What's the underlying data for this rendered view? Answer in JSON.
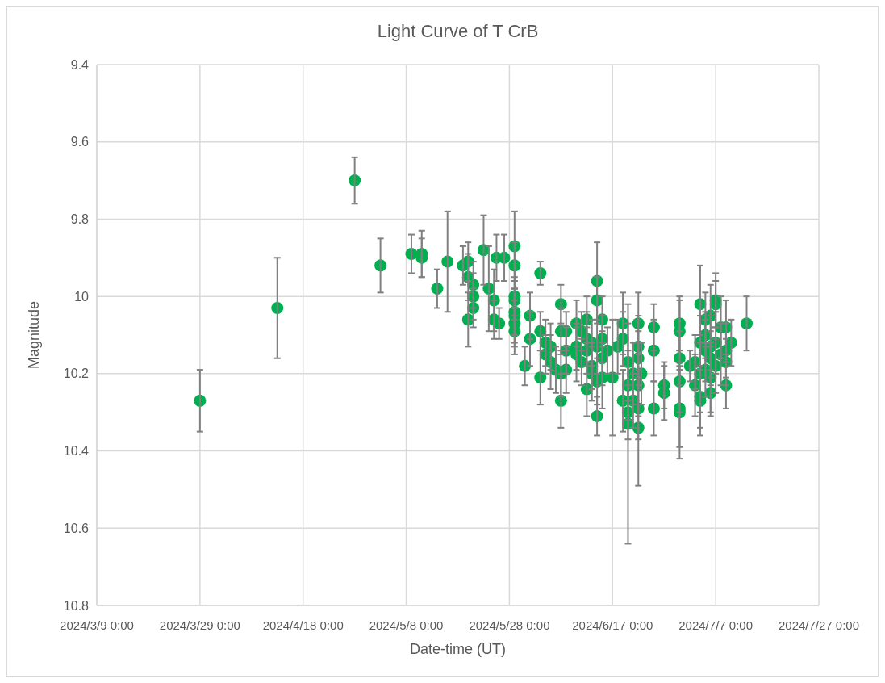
{
  "chart_data": {
    "type": "scatter",
    "title": "Light Curve of T CrB",
    "xlabel": "Date-time (UT)",
    "ylabel": "Magnitude",
    "xlim": [
      "2024-03-09",
      "2024-07-27"
    ],
    "xticks": [
      {
        "value": "2024-03-09",
        "label": "2024/3/9 0:00"
      },
      {
        "value": "2024-03-29",
        "label": "2024/3/29 0:00"
      },
      {
        "value": "2024-04-18",
        "label": "2024/4/18 0:00"
      },
      {
        "value": "2024-05-08",
        "label": "2024/5/8 0:00"
      },
      {
        "value": "2024-05-28",
        "label": "2024/5/28 0:00"
      },
      {
        "value": "2024-06-17",
        "label": "2024/6/17 0:00"
      },
      {
        "value": "2024-07-07",
        "label": "2024/7/7 0:00"
      },
      {
        "value": "2024-07-27",
        "label": "2024/7/27 0:00"
      }
    ],
    "ylim": [
      10.8,
      9.4
    ],
    "yticks": [
      9.4,
      9.6,
      9.8,
      10,
      10.2,
      10.4,
      10.6,
      10.8
    ],
    "grid": true,
    "marker": "circle",
    "series": [
      {
        "color": "#00b050",
        "x": [
          "2024-03-29",
          "2024-04-13",
          "2024-04-28",
          "2024-05-03",
          "2024-05-09",
          "2024-05-11",
          "2024-05-11",
          "2024-05-14",
          "2024-05-16",
          "2024-05-19",
          "2024-05-20",
          "2024-05-20",
          "2024-05-20",
          "2024-05-21",
          "2024-05-21",
          "2024-05-21",
          "2024-05-23",
          "2024-05-24",
          "2024-05-25T12:00",
          "2024-05-25",
          "2024-05-25",
          "2024-05-26",
          "2024-05-27",
          "2024-05-29",
          "2024-05-29",
          "2024-05-29",
          "2024-05-29",
          "2024-05-29",
          "2024-05-29",
          "2024-05-29",
          "2024-05-29",
          "2024-05-31",
          "2024-06-01",
          "2024-06-01",
          "2024-06-03",
          "2024-06-03",
          "2024-06-03",
          "2024-06-04",
          "2024-06-04",
          "2024-06-05",
          "2024-06-05",
          "2024-06-06",
          "2024-06-07",
          "2024-06-07",
          "2024-06-07",
          "2024-06-07",
          "2024-06-08",
          "2024-06-08",
          "2024-06-08",
          "2024-06-10",
          "2024-06-10",
          "2024-06-10",
          "2024-06-11",
          "2024-06-11",
          "2024-06-12",
          "2024-06-12",
          "2024-06-12",
          "2024-06-12",
          "2024-06-13",
          "2024-06-13",
          "2024-06-13",
          "2024-06-14",
          "2024-06-14",
          "2024-06-14",
          "2024-06-14",
          "2024-06-14",
          "2024-06-15",
          "2024-06-15",
          "2024-06-15",
          "2024-06-15",
          "2024-06-16",
          "2024-06-17",
          "2024-06-18",
          "2024-06-19",
          "2024-06-19",
          "2024-06-19",
          "2024-06-20",
          "2024-06-20",
          "2024-06-20",
          "2024-06-20",
          "2024-06-21",
          "2024-06-21",
          "2024-06-22",
          "2024-06-22",
          "2024-06-22",
          "2024-06-22T14:00",
          "2024-06-22",
          "2024-06-22",
          "2024-06-22",
          "2024-06-25",
          "2024-06-25",
          "2024-06-25",
          "2024-06-27",
          "2024-06-27",
          "2024-06-30",
          "2024-06-30",
          "2024-06-30",
          "2024-06-30",
          "2024-06-30",
          "2024-06-30",
          "2024-07-02",
          "2024-07-03",
          "2024-07-03",
          "2024-07-04",
          "2024-07-04",
          "2024-07-04",
          "2024-07-04",
          "2024-07-04",
          "2024-07-05",
          "2024-07-05",
          "2024-07-05",
          "2024-07-05",
          "2024-07-06",
          "2024-07-06",
          "2024-07-06",
          "2024-07-06",
          "2024-07-06",
          "2024-07-07",
          "2024-07-07",
          "2024-07-07",
          "2024-07-07",
          "2024-07-08",
          "2024-07-08",
          "2024-07-09",
          "2024-07-09",
          "2024-07-09",
          "2024-07-09",
          "2024-07-10",
          "2024-07-13"
        ],
        "values": [
          10.27,
          10.03,
          9.7,
          9.92,
          9.89,
          9.89,
          9.9,
          9.98,
          9.91,
          9.92,
          9.91,
          9.95,
          10.06,
          9.97,
          10.03,
          10.0,
          9.88,
          9.98,
          9.9,
          10.01,
          10.06,
          10.07,
          9.9,
          9.87,
          9.92,
          10.0,
          10.01,
          10.04,
          10.05,
          10.07,
          10.09,
          10.18,
          10.11,
          10.05,
          9.94,
          10.21,
          10.09,
          10.12,
          10.15,
          10.13,
          10.17,
          10.19,
          10.02,
          10.27,
          10.09,
          10.2,
          10.14,
          10.09,
          10.19,
          10.07,
          10.15,
          10.13,
          10.09,
          10.17,
          10.06,
          10.11,
          10.14,
          10.24,
          10.12,
          10.18,
          10.2,
          9.96,
          10.01,
          10.31,
          10.13,
          10.22,
          10.06,
          10.11,
          10.16,
          10.21,
          10.14,
          10.21,
          10.13,
          10.07,
          10.11,
          10.27,
          10.17,
          10.23,
          10.3,
          10.33,
          10.2,
          10.27,
          10.07,
          10.13,
          10.16,
          10.2,
          10.23,
          10.29,
          10.34,
          10.08,
          10.14,
          10.29,
          10.23,
          10.25,
          10.07,
          10.09,
          10.16,
          10.22,
          10.29,
          10.3,
          10.18,
          10.17,
          10.23,
          10.02,
          10.12,
          10.2,
          10.27,
          10.26,
          10.06,
          10.1,
          10.14,
          10.19,
          10.05,
          10.13,
          10.16,
          10.21,
          10.25,
          10.01,
          10.02,
          10.12,
          10.18,
          10.08,
          10.15,
          10.08,
          10.17,
          10.23,
          10.14,
          10.12,
          10.07
        ],
        "errors": [
          0.08,
          0.13,
          0.06,
          0.07,
          0.05,
          0.06,
          0.05,
          0.05,
          0.13,
          0.05,
          0.05,
          0.06,
          0.07,
          0.06,
          0.05,
          0.06,
          0.09,
          0.11,
          0.06,
          0.08,
          0.05,
          0.04,
          0.06,
          0.09,
          0.06,
          0.05,
          0.05,
          0.06,
          0.07,
          0.06,
          0.06,
          0.05,
          0.07,
          0.06,
          0.03,
          0.07,
          0.05,
          0.06,
          0.05,
          0.06,
          0.07,
          0.06,
          0.05,
          0.07,
          0.06,
          0.06,
          0.06,
          0.05,
          0.06,
          0.06,
          0.07,
          0.06,
          0.05,
          0.06,
          0.06,
          0.07,
          0.06,
          0.07,
          0.06,
          0.06,
          0.07,
          0.1,
          0.06,
          0.05,
          0.07,
          0.06,
          0.06,
          0.06,
          0.07,
          0.08,
          0.06,
          0.15,
          0.07,
          0.08,
          0.07,
          0.08,
          0.1,
          0.09,
          0.07,
          0.31,
          0.08,
          0.07,
          0.08,
          0.08,
          0.07,
          0.08,
          0.08,
          0.08,
          0.15,
          0.06,
          0.08,
          0.07,
          0.06,
          0.07,
          0.07,
          0.08,
          0.07,
          0.08,
          0.1,
          0.12,
          0.04,
          0.07,
          0.08,
          0.1,
          0.07,
          0.1,
          0.09,
          0.08,
          0.07,
          0.06,
          0.08,
          0.07,
          0.08,
          0.08,
          0.07,
          0.09,
          0.06,
          0.07,
          0.06,
          0.08,
          0.07,
          0.08,
          0.08,
          0.07,
          0.06,
          0.06,
          0.07,
          0.06,
          0.07
        ]
      }
    ]
  }
}
